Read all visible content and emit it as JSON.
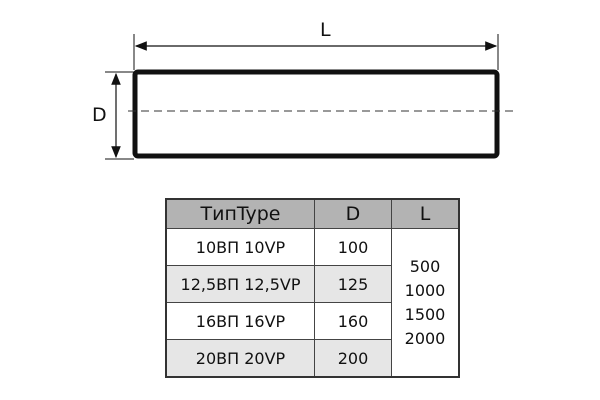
{
  "diagram": {
    "length_label": "L",
    "diameter_label": "D"
  },
  "table": {
    "headers": [
      "ТипType",
      "D",
      "L"
    ],
    "rows": [
      {
        "type": "10ВП 10VP",
        "d": "100"
      },
      {
        "type": "12,5ВП 12,5VP",
        "d": "125"
      },
      {
        "type": "16ВП 16VP",
        "d": "160"
      },
      {
        "type": "20ВП 20VP",
        "d": "200"
      }
    ],
    "lengths": [
      "500",
      "1000",
      "1500",
      "2000"
    ]
  }
}
